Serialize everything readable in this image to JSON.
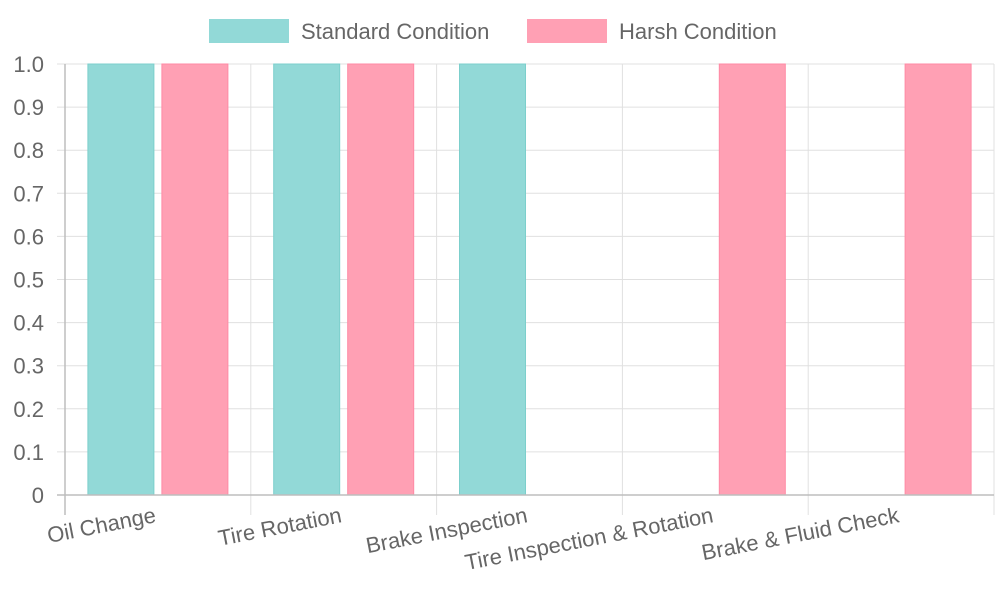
{
  "chart_data": {
    "type": "bar",
    "categories": [
      "Oil Change",
      "Tire Rotation",
      "Brake Inspection",
      "Tire Inspection & Rotation",
      "Brake & Fluid Check"
    ],
    "series": [
      {
        "name": "Standard Condition",
        "values": [
          1,
          1,
          1,
          0,
          0
        ],
        "color": "#92d9d7",
        "border": "#7ccfcc"
      },
      {
        "name": "Harsh Condition",
        "values": [
          1,
          1,
          0,
          1,
          1
        ],
        "color": "#ffa0b4",
        "border": "#ff8aa5"
      }
    ],
    "ylim": [
      0,
      1
    ],
    "yticks": [
      "0",
      "0.1",
      "0.2",
      "0.3",
      "0.4",
      "0.5",
      "0.6",
      "0.7",
      "0.8",
      "0.9",
      "1.0"
    ],
    "title": "",
    "xlabel": "",
    "ylabel": "",
    "grid": true,
    "legend_position": "top-center"
  }
}
